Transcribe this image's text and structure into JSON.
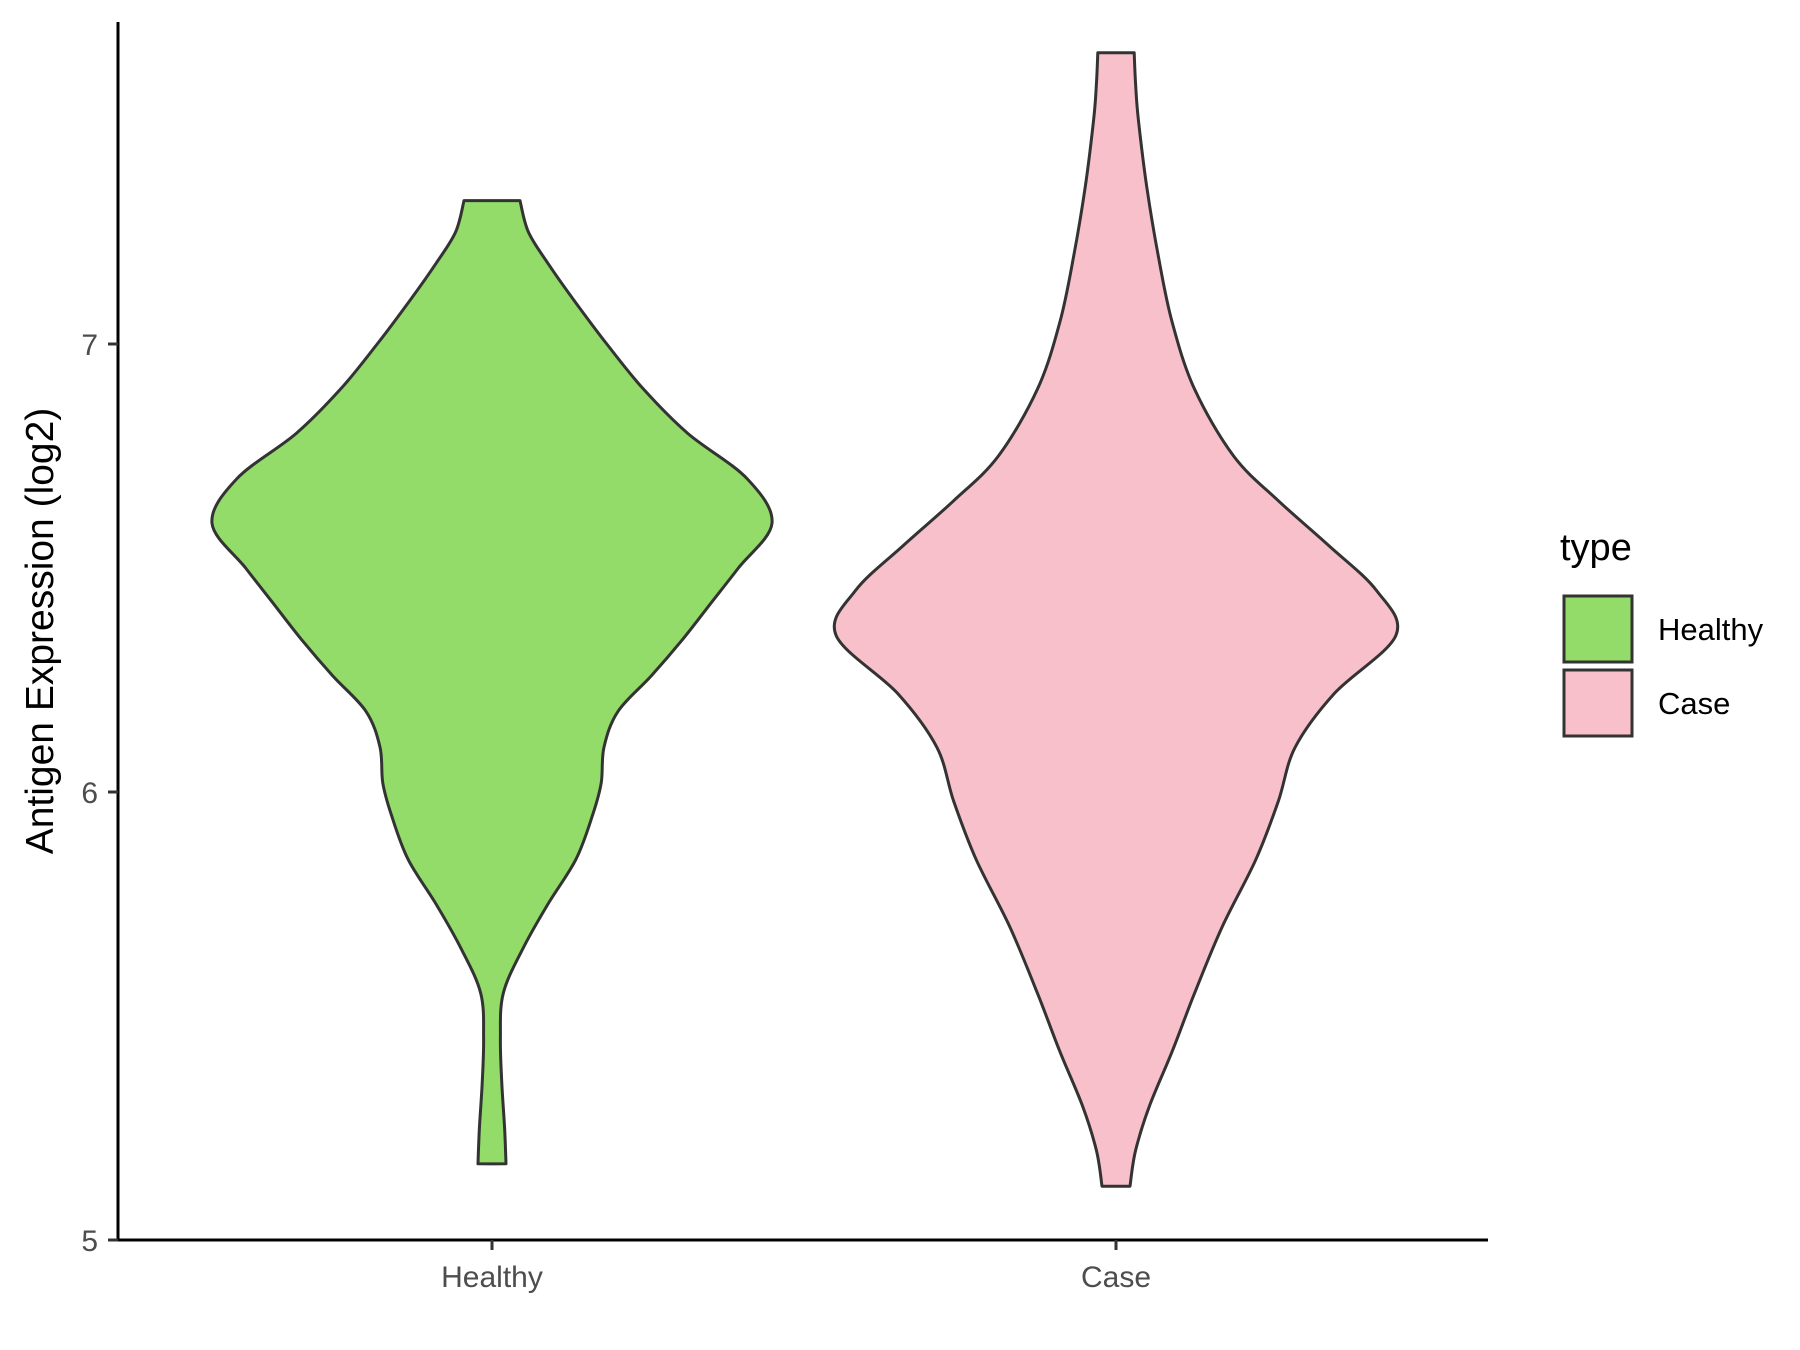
{
  "chart_data": {
    "type": "violin",
    "title": "",
    "xlabel": "",
    "ylabel": "Antigen Expression (log2)",
    "ylim": [
      5,
      7.72
    ],
    "yticks": [
      5,
      6,
      7
    ],
    "categories": [
      "Healthy",
      "Case"
    ],
    "grid": false,
    "legend": {
      "title": "type",
      "placement": "right",
      "entries": [
        {
          "label": "Healthy",
          "color": "#93DC6A"
        },
        {
          "label": "Case",
          "color": "#F8C0CB"
        }
      ]
    },
    "series": [
      {
        "category": "Healthy",
        "color": "#93DC6A",
        "min": 5.17,
        "max": 7.32,
        "profile": [
          [
            5.17,
            0.05
          ],
          [
            5.25,
            0.045
          ],
          [
            5.35,
            0.035
          ],
          [
            5.45,
            0.03
          ],
          [
            5.55,
            0.04
          ],
          [
            5.65,
            0.11
          ],
          [
            5.75,
            0.2
          ],
          [
            5.85,
            0.3
          ],
          [
            5.95,
            0.36
          ],
          [
            6.02,
            0.39
          ],
          [
            6.1,
            0.4
          ],
          [
            6.18,
            0.45
          ],
          [
            6.26,
            0.57
          ],
          [
            6.34,
            0.68
          ],
          [
            6.42,
            0.78
          ],
          [
            6.5,
            0.88
          ],
          [
            6.6,
            1.0
          ],
          [
            6.7,
            0.91
          ],
          [
            6.8,
            0.7
          ],
          [
            6.9,
            0.54
          ],
          [
            7.0,
            0.41
          ],
          [
            7.1,
            0.29
          ],
          [
            7.18,
            0.2
          ],
          [
            7.25,
            0.13
          ],
          [
            7.32,
            0.1
          ]
        ]
      },
      {
        "category": "Case",
        "color": "#F8C0CB",
        "min": 5.12,
        "max": 7.65,
        "profile": [
          [
            5.12,
            0.05
          ],
          [
            5.2,
            0.07
          ],
          [
            5.3,
            0.12
          ],
          [
            5.42,
            0.2
          ],
          [
            5.55,
            0.28
          ],
          [
            5.7,
            0.38
          ],
          [
            5.85,
            0.5
          ],
          [
            5.98,
            0.58
          ],
          [
            6.1,
            0.64
          ],
          [
            6.22,
            0.78
          ],
          [
            6.35,
            1.0
          ],
          [
            6.45,
            0.93
          ],
          [
            6.55,
            0.76
          ],
          [
            6.65,
            0.58
          ],
          [
            6.75,
            0.42
          ],
          [
            6.9,
            0.28
          ],
          [
            7.05,
            0.2
          ],
          [
            7.2,
            0.15
          ],
          [
            7.35,
            0.11
          ],
          [
            7.5,
            0.08
          ],
          [
            7.58,
            0.07
          ],
          [
            7.65,
            0.065
          ]
        ]
      }
    ]
  }
}
